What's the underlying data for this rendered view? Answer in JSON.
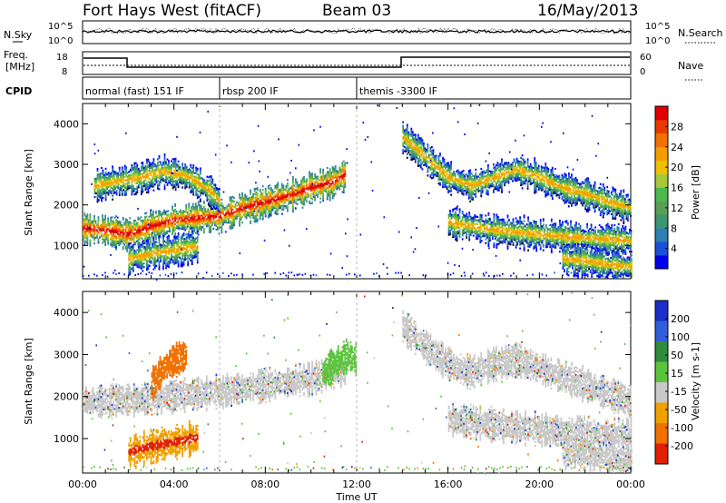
{
  "header": {
    "title": "Fort Hays West (fitACF)",
    "beam": "Beam 03",
    "date": "16/May/2013"
  },
  "summary_panel": {
    "left_label": "N.Sky",
    "right_label": "N.Search",
    "left_ticks": [
      "10^5",
      "10^0"
    ],
    "right_ticks": [
      "10^5",
      "10^0"
    ]
  },
  "freq_panel": {
    "left_label_1": "Freq.",
    "left_label_2": "[MHz]",
    "right_label": "Nave",
    "left_ticks": [
      "18",
      "8"
    ],
    "right_ticks": [
      "60",
      "0"
    ]
  },
  "cpid_panel": {
    "label": "CPID",
    "segments": [
      {
        "label": "normal (fast) 151 IF",
        "start_hour": 0.0,
        "end_hour": 6.0
      },
      {
        "label": "rbsp 200 IF",
        "start_hour": 6.0,
        "end_hour": 12.0
      },
      {
        "label": "themis -3300 IF",
        "start_hour": 12.0,
        "end_hour": 24.0
      }
    ]
  },
  "chart_data": [
    {
      "type": "heatmap",
      "name": "power",
      "ylabel": "Slant Range [km]",
      "xlabel": "",
      "xlim": [
        0,
        24
      ],
      "ylim": [
        180,
        4500
      ],
      "yticks": [
        1000,
        2000,
        3000,
        4000
      ],
      "colorbar": {
        "label": "Power [dB]",
        "ticks": [
          "4",
          "8",
          "12",
          "16",
          "20",
          "24",
          "28"
        ],
        "range": [
          0,
          30
        ],
        "colors": [
          "#0000ee",
          "#1a4fd8",
          "#2f7fb0",
          "#3d9470",
          "#5a9e56",
          "#4cb84c",
          "#a8c83a",
          "#f0c000",
          "#f39c00",
          "#f07000",
          "#e83a00",
          "#e00000"
        ]
      },
      "echo_bands": [
        {
          "desc": "main band",
          "x_hours": [
            0.0,
            1.0,
            2.0,
            3.0,
            4.0,
            5.0,
            6.0,
            7.0,
            8.0,
            9.0,
            10.0,
            11.0,
            11.5
          ],
          "range_km": [
            1450,
            1400,
            1300,
            1500,
            1650,
            1700,
            1750,
            1950,
            2100,
            2250,
            2450,
            2600,
            2800
          ]
        },
        {
          "desc": "upper band",
          "x_hours": [
            0.5,
            1.5,
            2.5,
            3.5,
            4.5,
            5.5,
            6.0
          ],
          "range_km": [
            2500,
            2600,
            2700,
            2850,
            2750,
            2400,
            2100
          ]
        },
        {
          "desc": "lower band",
          "x_hours": [
            2.0,
            3.0,
            4.0,
            5.0
          ],
          "range_km": [
            700,
            820,
            900,
            1000
          ]
        },
        {
          "desc": "post-midday band",
          "x_hours": [
            14.0,
            15.0,
            16.0,
            17.0,
            18.0,
            19.0,
            20.0,
            21.0,
            22.0,
            23.0,
            24.0
          ],
          "range_km": [
            3700,
            3200,
            2700,
            2500,
            2700,
            2900,
            2700,
            2450,
            2300,
            2100,
            1950
          ]
        },
        {
          "desc": "late lower band",
          "x_hours": [
            16.0,
            18.0,
            20.0,
            22.0,
            24.0
          ],
          "range_km": [
            1600,
            1400,
            1300,
            1200,
            1150
          ]
        },
        {
          "desc": "dawn low band",
          "x_hours": [
            21.0,
            22.0,
            23.0,
            24.0
          ],
          "range_km": [
            700,
            650,
            550,
            500
          ]
        }
      ]
    },
    {
      "type": "heatmap",
      "name": "velocity",
      "ylabel": "Slant Range [km]",
      "xlabel": "Time UT",
      "xlim": [
        0,
        24
      ],
      "ylim": [
        180,
        4500
      ],
      "yticks": [
        1000,
        2000,
        3000,
        4000
      ],
      "xticks": [
        "00:00",
        "04:00",
        "08:00",
        "12:00",
        "16:00",
        "20:00",
        "00:00"
      ],
      "colorbar": {
        "label": "Velocity [m s-1]",
        "ticks": [
          "200",
          "100",
          "50",
          "15",
          "-15",
          "-50",
          "-100",
          "-200"
        ],
        "colors": [
          "#1a2ec8",
          "#2f5fd8",
          "#2c8c3c",
          "#5cc43c",
          "#c8c8c8",
          "#f0a000",
          "#f07000",
          "#e02000"
        ]
      },
      "echo_bands": [
        {
          "desc": "main grey band",
          "x_hours": [
            0.0,
            2.0,
            4.0,
            6.0,
            8.0,
            10.0,
            11.5
          ],
          "range_km": [
            1900,
            1950,
            2050,
            2150,
            2300,
            2450,
            2650
          ]
        },
        {
          "desc": "orange lower band",
          "x_hours": [
            2.0,
            3.0,
            4.0,
            5.0
          ],
          "range_km": [
            700,
            850,
            950,
            1050
          ]
        },
        {
          "desc": "orange upper band",
          "x_hours": [
            3.0,
            3.5,
            4.0,
            4.5
          ],
          "range_km": [
            2300,
            2700,
            2900,
            3000
          ]
        },
        {
          "desc": "green near-noon band",
          "x_hours": [
            10.5,
            11.0,
            11.5,
            12.0
          ],
          "range_km": [
            2600,
            2800,
            3000,
            2900
          ]
        },
        {
          "desc": "grey post-midday band",
          "x_hours": [
            14.0,
            15.0,
            16.0,
            17.0,
            18.0,
            19.0,
            20.0,
            22.0,
            24.0
          ],
          "range_km": [
            3700,
            3200,
            2800,
            2600,
            2800,
            2900,
            2700,
            2300,
            1900
          ]
        },
        {
          "desc": "grey late lower band",
          "x_hours": [
            16.0,
            18.0,
            20.0,
            22.0,
            24.0
          ],
          "range_km": [
            1500,
            1350,
            1250,
            1150,
            1100
          ]
        },
        {
          "desc": "grey dawn band",
          "x_hours": [
            21.0,
            22.0,
            23.0,
            24.0
          ],
          "range_km": [
            700,
            650,
            550,
            500
          ]
        }
      ]
    }
  ]
}
